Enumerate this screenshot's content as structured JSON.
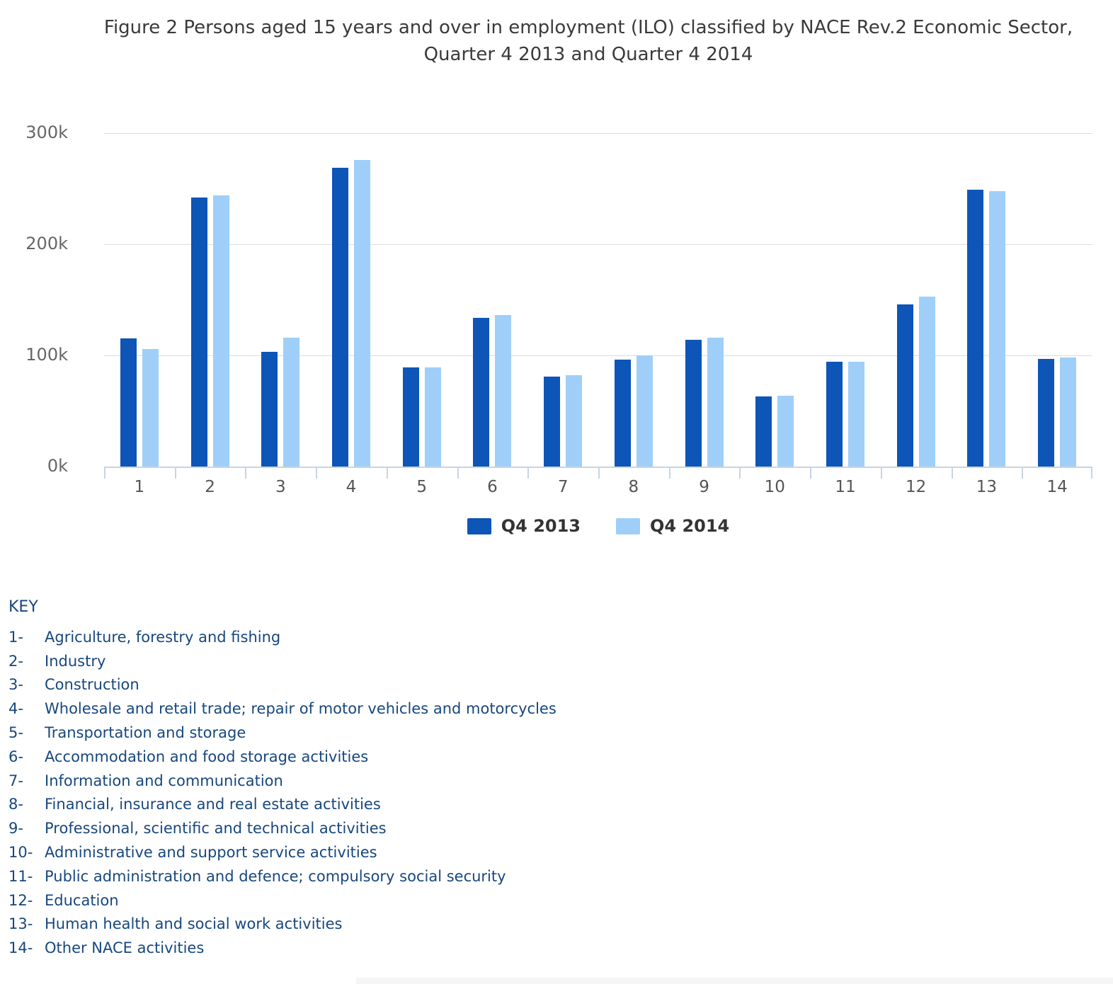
{
  "title": {
    "line1": "Figure 2 Persons aged 15 years and over in employment (ILO) classified by NACE Rev.2 Economic Sector,",
    "line2": "Quarter 4 2013 and Quarter 4 2014"
  },
  "colors": {
    "series1": "#0d55b7",
    "series2": "#9fcff8",
    "gridline": "#dcdcdc",
    "axis": "#c7d4e3",
    "key_text": "#17477e"
  },
  "chart_data": {
    "type": "bar",
    "title": "Figure 2 Persons aged 15 years and over in employment (ILO) classified by NACE Rev.2 Economic Sector, Quarter 4 2013 and Quarter 4 2014",
    "unit": "thousands of persons",
    "categories": [
      "1",
      "2",
      "3",
      "4",
      "5",
      "6",
      "7",
      "8",
      "9",
      "10",
      "11",
      "12",
      "13",
      "14"
    ],
    "series": [
      {
        "name": "Q4 2013",
        "color": "#0d55b7",
        "values_thousands": [
          115,
          242,
          103,
          269,
          89,
          134,
          81,
          96,
          114,
          63,
          94,
          146,
          249,
          97
        ]
      },
      {
        "name": "Q4 2014",
        "color": "#9fcff8",
        "values_thousands": [
          106,
          244,
          116,
          276,
          89,
          136,
          82,
          100,
          116,
          64,
          94,
          153,
          248,
          98
        ]
      }
    ],
    "xlabel": "",
    "ylabel": "",
    "ylim_thousands": [
      0,
      300
    ],
    "y_ticks": [
      {
        "label": "300k",
        "value_thousands": 300
      },
      {
        "label": "200k",
        "value_thousands": 200
      },
      {
        "label": "100k",
        "value_thousands": 100
      },
      {
        "label": "0k",
        "value_thousands": 0
      }
    ],
    "grid": "horizontal",
    "legend_position": "bottom-center"
  },
  "legend": [
    {
      "label": "Q4 2013",
      "color": "#0d55b7"
    },
    {
      "label": "Q4 2014",
      "color": "#9fcff8"
    }
  ],
  "key": {
    "heading": "KEY",
    "items": [
      {
        "num": "1-",
        "label": "Agriculture, forestry and fishing"
      },
      {
        "num": "2-",
        "label": "Industry"
      },
      {
        "num": "3-",
        "label": "Construction"
      },
      {
        "num": "4-",
        "label": "Wholesale and retail trade; repair of motor vehicles and motorcycles"
      },
      {
        "num": "5-",
        "label": "Transportation and storage"
      },
      {
        "num": "6-",
        "label": "Accommodation and food storage activities"
      },
      {
        "num": "7-",
        "label": "Information and communication"
      },
      {
        "num": "8-",
        "label": "Financial, insurance and real estate activities"
      },
      {
        "num": "9-",
        "label": "Professional, scientific and technical activities"
      },
      {
        "num": "10-",
        "label": "Administrative and support service activities"
      },
      {
        "num": "11-",
        "label": "Public administration and defence; compulsory social security"
      },
      {
        "num": "12-",
        "label": "Education"
      },
      {
        "num": "13-",
        "label": "Human health and social work activities"
      },
      {
        "num": "14-",
        "label": "Other NACE activities"
      }
    ]
  }
}
